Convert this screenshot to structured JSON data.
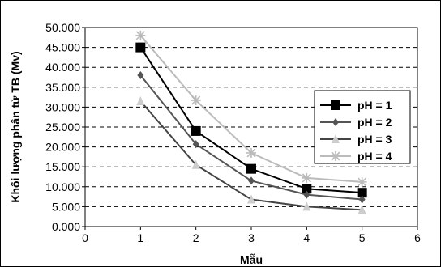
{
  "chart_data": {
    "type": "line",
    "xlabel": "Mẫu",
    "ylabel": "Khối lượng phân tử TB (Mv)",
    "xlim": [
      0,
      6
    ],
    "ylim": [
      0,
      50000
    ],
    "x_ticks": [
      "0",
      "1",
      "2",
      "3",
      "4",
      "5",
      "6"
    ],
    "y_ticks": [
      "0.000",
      "5.000",
      "10.000",
      "15.000",
      "20.000",
      "25.000",
      "30.000",
      "35.000",
      "40.000",
      "45.000",
      "50.000"
    ],
    "x": [
      1,
      2,
      3,
      4,
      5
    ],
    "grid": "horizontal-dashed",
    "legend_position": "right",
    "series": [
      {
        "name": "pH = 1",
        "values": [
          45000,
          24000,
          14500,
          9500,
          8500
        ],
        "color": "#000000",
        "marker": "square"
      },
      {
        "name": "pH = 2",
        "values": [
          38000,
          20700,
          11500,
          8000,
          6800
        ],
        "color": "#555555",
        "marker": "diamond"
      },
      {
        "name": "pH = 3",
        "values": [
          31500,
          15500,
          6800,
          5000,
          4200
        ],
        "color": "#444444",
        "marker": "triangle",
        "marker_color": "#cccccc"
      },
      {
        "name": "pH = 4",
        "values": [
          48000,
          31700,
          18500,
          12200,
          11200
        ],
        "color": "#bbbbbb",
        "marker": "star"
      }
    ]
  }
}
